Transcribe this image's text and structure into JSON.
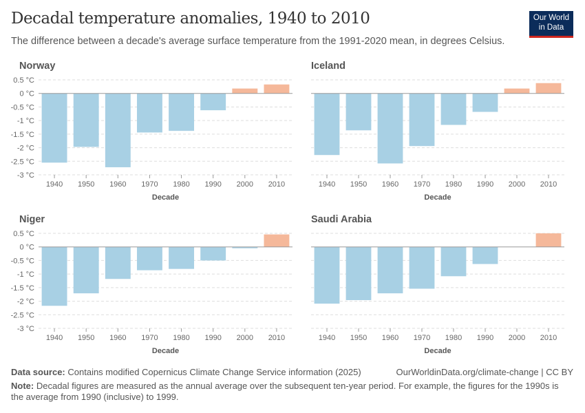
{
  "title": "Decadal temperature anomalies, 1940 to 2010",
  "subtitle": "The difference between a decade's average surface temperature from the 1991-2020 mean, in degrees Celsius.",
  "logo": {
    "line1": "Our World",
    "line2": "in Data"
  },
  "colors": {
    "negative": "#a8d0e4",
    "positive": "#f5b89a",
    "grid": "#dddddd",
    "zero": "#999999"
  },
  "chart_data": [
    {
      "type": "bar",
      "title": "Norway",
      "xlabel": "Decade",
      "ylim": [
        -3,
        0.5
      ],
      "yticks": [
        "0.5 °C",
        "0 °C",
        "-0.5 °C",
        "-1 °C",
        "-1.5 °C",
        "-2 °C",
        "-2.5 °C",
        "-3 °C"
      ],
      "categories": [
        "1940",
        "1950",
        "1960",
        "1970",
        "1980",
        "1990",
        "2000",
        "2010"
      ],
      "values": [
        -2.55,
        -1.97,
        -2.72,
        -1.44,
        -1.38,
        -0.62,
        0.18,
        0.33
      ]
    },
    {
      "type": "bar",
      "title": "Iceland",
      "xlabel": "Decade",
      "ylim": [
        -3,
        0.5
      ],
      "categories": [
        "1940",
        "1950",
        "1960",
        "1970",
        "1980",
        "1990",
        "2000",
        "2010"
      ],
      "values": [
        -2.27,
        -1.36,
        -2.58,
        -1.94,
        -1.16,
        -0.68,
        0.18,
        0.38
      ]
    },
    {
      "type": "bar",
      "title": "Niger",
      "xlabel": "Decade",
      "ylim": [
        -3,
        0.5
      ],
      "yticks": [
        "0.5 °C",
        "0 °C",
        "-0.5 °C",
        "-1 °C",
        "-1.5 °C",
        "-2 °C",
        "-2.5 °C",
        "-3 °C"
      ],
      "categories": [
        "1940",
        "1950",
        "1960",
        "1970",
        "1980",
        "1990",
        "2000",
        "2010"
      ],
      "values": [
        -2.17,
        -1.71,
        -1.18,
        -0.86,
        -0.81,
        -0.5,
        -0.05,
        0.46
      ]
    },
    {
      "type": "bar",
      "title": "Saudi Arabia",
      "xlabel": "Decade",
      "ylim": [
        -3,
        0.5
      ],
      "categories": [
        "1940",
        "1950",
        "1960",
        "1970",
        "1980",
        "1990",
        "2000",
        "2010"
      ],
      "values": [
        -2.09,
        -1.96,
        -1.71,
        -1.54,
        -1.08,
        -0.63,
        0,
        0.5
      ]
    }
  ],
  "footer": {
    "source_label": "Data source:",
    "source_text": "Contains modified Copernicus Climate Change Service information (2025)",
    "url": "OurWorldinData.org/climate-change | CC BY",
    "note_label": "Note:",
    "note_text": "Decadal figures are measured as the annual average over the subsequent ten-year period. For example, the figures for the 1990s is the average from 1990 (inclusive) to 1999."
  }
}
